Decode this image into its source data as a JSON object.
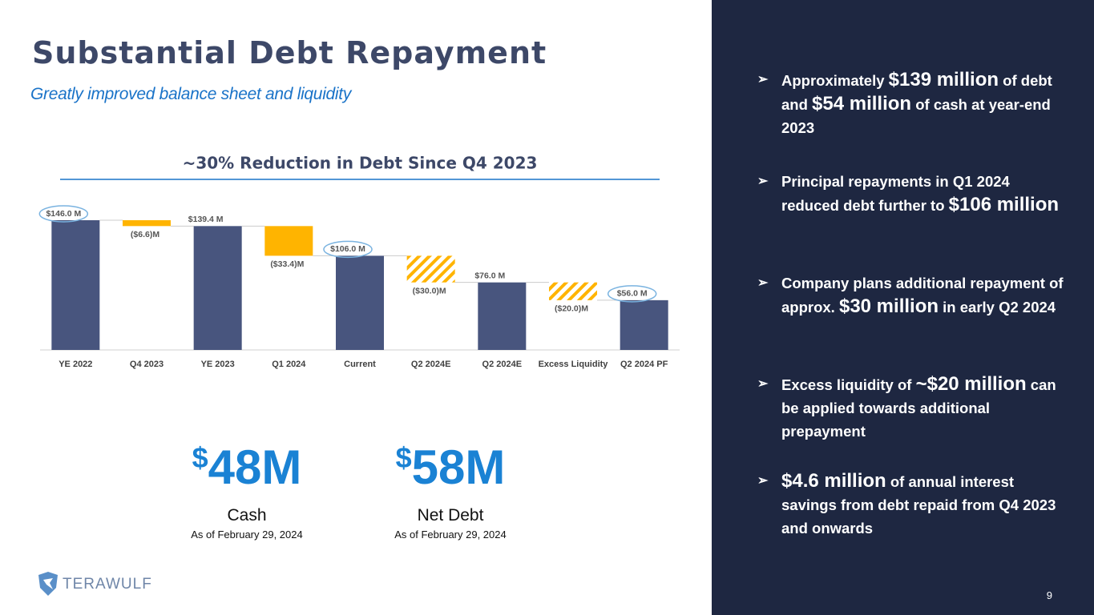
{
  "header": {
    "title": "Substantial Debt Repayment",
    "subtitle": "Greatly improved balance sheet and liquidity"
  },
  "chart_data": {
    "type": "waterfall",
    "title": "~30% Reduction in Debt Since Q4 2023",
    "categories": [
      "YE 2022",
      "Q4 2023",
      "YE 2023",
      "Q1 2024",
      "Current",
      "Q2 2024E",
      "Q2 2024E",
      "Excess Liquidity",
      "Q2 2024 PF"
    ],
    "values": [
      146.0,
      -6.6,
      139.4,
      -33.4,
      106.0,
      -30.0,
      76.0,
      -20.0,
      56.0
    ],
    "value_labels": [
      "$146.0 M",
      "($6.6)M",
      "$139.4 M",
      "($33.4)M",
      "$106.0 M",
      "($30.0)M",
      "$76.0 M",
      "($20.0)M",
      "$56.0 M"
    ],
    "styles": [
      "total-circled",
      "decrease",
      "total",
      "decrease",
      "total-circled",
      "decrease-hatched",
      "total",
      "decrease-hatched",
      "total-circled"
    ],
    "total_color": "#48557e",
    "decrease_color": "#ffb400"
  },
  "stats": [
    {
      "symbol": "$",
      "figure": "48M",
      "label": "Cash",
      "note": "As of February 29, 2024"
    },
    {
      "symbol": "$",
      "figure": "58M",
      "label": "Net Debt",
      "note": "As of February 29, 2024"
    }
  ],
  "bullets": [
    [
      {
        "text": "Approximately ",
        "big": false
      },
      {
        "text": "$139 million",
        "big": true
      },
      {
        "text": " of debt and ",
        "big": false
      },
      {
        "text": "$54 million",
        "big": true
      },
      {
        "text": " of cash at year-end 2023",
        "big": false
      }
    ],
    [
      {
        "text": "Principal repayments in Q1 2024 reduced debt further to ",
        "big": false
      },
      {
        "text": "$106 million",
        "big": true
      }
    ],
    [
      {
        "text": "Company plans additional repayment of approx. ",
        "big": false
      },
      {
        "text": "$30 million",
        "big": true
      },
      {
        "text": " in early Q2 2024",
        "big": false
      }
    ],
    [
      {
        "text": "Excess liquidity of ",
        "big": false
      },
      {
        "text": "~$20 million",
        "big": true
      },
      {
        "text": " can be applied towards additional prepayment",
        "big": false
      }
    ],
    [
      {
        "text": "$4.6 million",
        "big": true
      },
      {
        "text": " of annual interest savings from debt repaid from Q4 2023 and onwards",
        "big": false
      }
    ]
  ],
  "logo": "TERAWULF",
  "page_number": "9"
}
